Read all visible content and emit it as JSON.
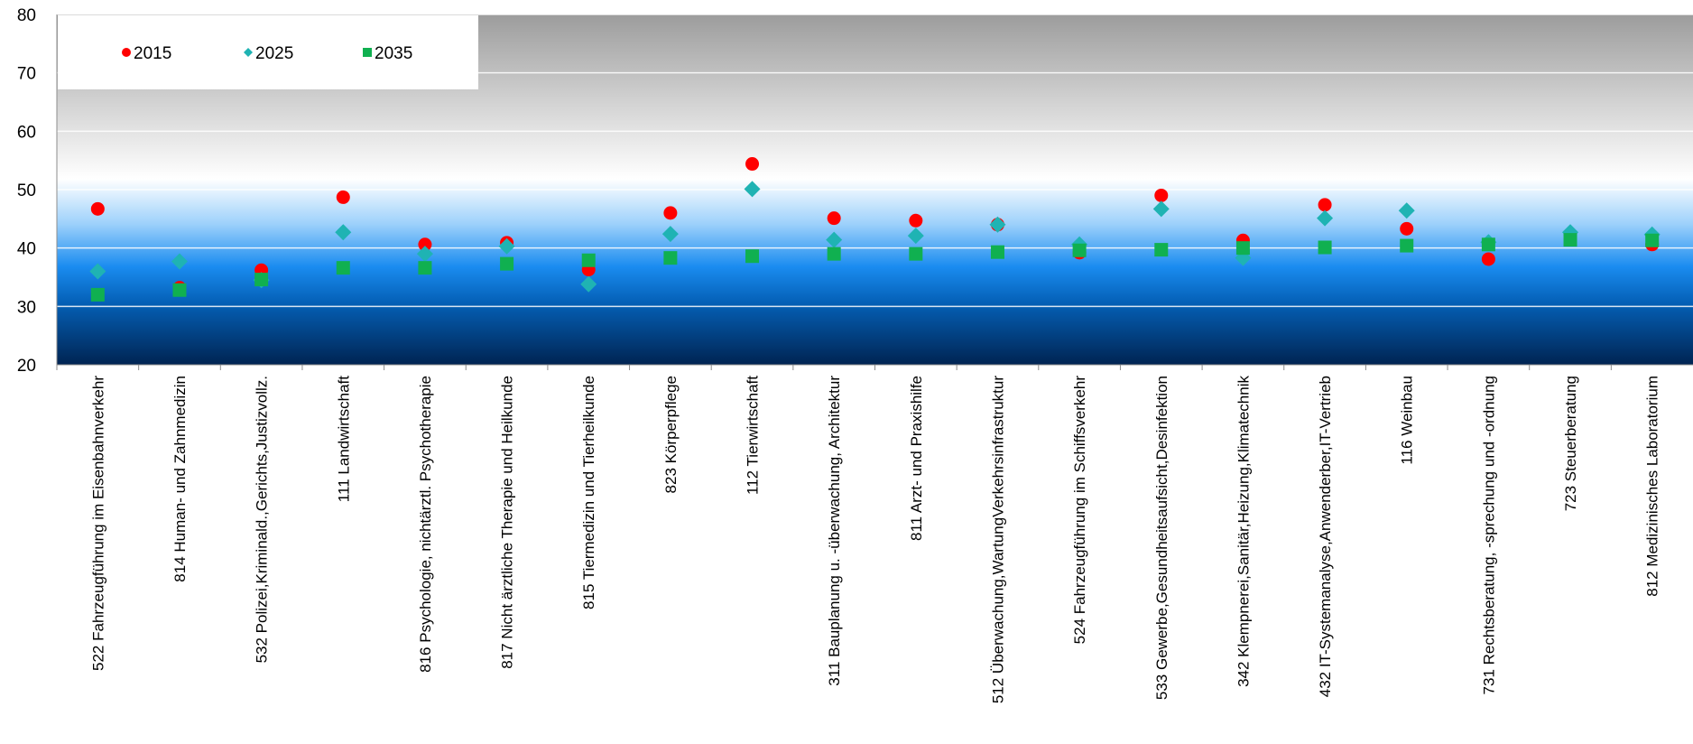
{
  "chart_data": {
    "type": "scatter",
    "ylim": [
      20,
      80
    ],
    "yticks": [
      20,
      30,
      40,
      50,
      60,
      70,
      80
    ],
    "grid": true,
    "legend_position": "top-left",
    "categories": [
      "522 Fahrzeugführung im Eisenbahnverkehr",
      "814 Human- und Zahnmedizin",
      "532 Polizei,Kriminald.,Gerichts,Justizvollz.",
      "111 Landwirtschaft",
      "816 Psychologie, nichtärztl. Psychotherapie",
      "817 Nicht ärztliche Therapie und Heilkunde",
      "815 Tiermedizin und Tierheilkunde",
      "823 Körperpflege",
      "112 Tierwirtschaft",
      "311 Bauplanung u. -überwachung, Architektur",
      "811 Arzt- und Praxishilfe",
      "512 Überwachung,WartungVerkehrsinfrastruktur",
      "524 Fahrzeugführung im Schiffsverkehr",
      "533 Gewerbe,Gesundheitsaufsicht,Desinfektion",
      "342 Klempnerei,Sanitär,Heizung,Klimatechnik",
      "432 IT-Systemanalyse,Anwenderber,IT-Vertrieb",
      "116 Weinbau",
      "731 Rechtsberatung, -sprechung und -ordnung",
      "723 Steuerberatung",
      "812 Medizinisches Laboratorium"
    ],
    "series": [
      {
        "name": "2015",
        "marker": "circle",
        "color": "#ff0000",
        "values": [
          46.7,
          33.2,
          36.2,
          48.7,
          40.6,
          40.9,
          36.3,
          46.0,
          54.4,
          45.1,
          44.7,
          44.0,
          39.2,
          49.0,
          41.3,
          47.4,
          43.3,
          38.1,
          42.3,
          40.6
        ]
      },
      {
        "name": "2025",
        "marker": "diamond",
        "color": "#1fb3b3",
        "values": [
          36.0,
          37.7,
          34.5,
          42.7,
          39.0,
          40.3,
          33.8,
          42.4,
          50.1,
          41.4,
          42.1,
          44.0,
          40.6,
          46.7,
          38.3,
          45.1,
          46.4,
          41.0,
          42.7,
          42.3
        ]
      },
      {
        "name": "2035",
        "marker": "square",
        "color": "#10b050",
        "values": [
          32.0,
          32.8,
          34.6,
          36.6,
          36.6,
          37.3,
          37.9,
          38.3,
          38.6,
          39.0,
          39.0,
          39.3,
          39.6,
          39.7,
          40.0,
          40.1,
          40.4,
          40.6,
          41.4,
          41.3
        ]
      }
    ]
  }
}
